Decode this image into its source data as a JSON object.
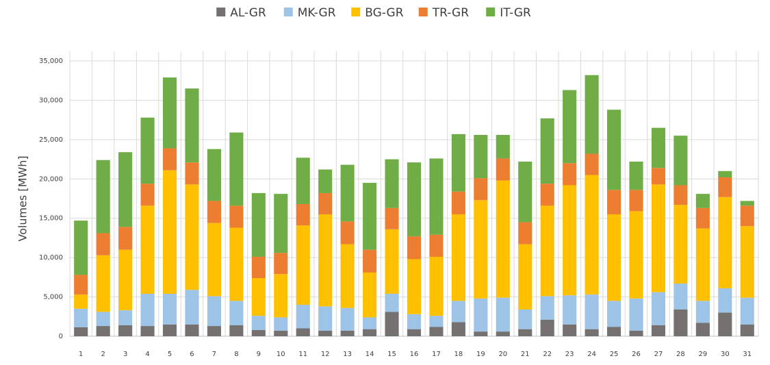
{
  "chart_data": {
    "type": "stacked-bar",
    "y_label": "Volumes [MWh]",
    "categories": [
      "1",
      "2",
      "3",
      "4",
      "5",
      "6",
      "7",
      "8",
      "9",
      "10",
      "11",
      "12",
      "13",
      "14",
      "15",
      "16",
      "17",
      "18",
      "19",
      "20",
      "21",
      "22",
      "23",
      "24",
      "25",
      "26",
      "27",
      "28",
      "29",
      "30",
      "31"
    ],
    "series": [
      {
        "name": "AL-GR",
        "color": "#767171",
        "values": [
          1150,
          1300,
          1400,
          1300,
          1500,
          1500,
          1300,
          1400,
          800,
          700,
          1000,
          700,
          700,
          900,
          3100,
          900,
          1200,
          1800,
          600,
          600,
          900,
          2100,
          1500,
          900,
          1200,
          700,
          1400,
          3400,
          1700,
          3000,
          1500
        ]
      },
      {
        "name": "MK-GR",
        "color": "#9dc3e6",
        "values": [
          2350,
          1800,
          1900,
          4100,
          3900,
          4400,
          3800,
          3100,
          1800,
          1700,
          3000,
          3100,
          2900,
          1500,
          2300,
          1900,
          1400,
          2700,
          4200,
          4300,
          2500,
          3000,
          3700,
          4400,
          3300,
          4100,
          4200,
          3300,
          2800,
          3100,
          3400
        ]
      },
      {
        "name": "BG-GR",
        "color": "#ffc000",
        "values": [
          1800,
          7200,
          7700,
          11200,
          15700,
          13400,
          9300,
          9300,
          4800,
          5500,
          10100,
          11700,
          8100,
          5700,
          8200,
          7000,
          7500,
          11000,
          12500,
          14900,
          8300,
          11500,
          14000,
          15200,
          11000,
          11100,
          13700,
          10000,
          9200,
          11600,
          9100
        ]
      },
      {
        "name": "TR-GR",
        "color": "#ed7d31",
        "values": [
          2500,
          2800,
          2900,
          2800,
          2800,
          2800,
          2800,
          2800,
          2700,
          2700,
          2700,
          2700,
          2900,
          2900,
          2700,
          2900,
          2800,
          2900,
          2800,
          2800,
          2800,
          2800,
          2800,
          2700,
          3100,
          2700,
          2100,
          2500,
          2600,
          2500,
          2600
        ]
      },
      {
        "name": "IT-GR",
        "color": "#70ad47",
        "values": [
          6900,
          9300,
          9500,
          8400,
          9000,
          9400,
          6600,
          9300,
          8100,
          7500,
          5900,
          3000,
          7200,
          8500,
          6200,
          9400,
          9700,
          7300,
          5500,
          3000,
          7700,
          8300,
          9300,
          10000,
          10200,
          3600,
          5100,
          6300,
          1800,
          800,
          600
        ]
      }
    ],
    "ylim": [
      0,
      35000
    ],
    "yticks": [
      0,
      {
        "value": 5000,
        "label": "5,000"
      },
      {
        "value": 10000,
        "label": "10,000"
      },
      {
        "value": 15000,
        "label": "15,000"
      },
      {
        "value": 20000,
        "label": "20,000"
      },
      {
        "value": 25000,
        "label": "25,000"
      },
      {
        "value": 30000,
        "label": "30,000"
      },
      {
        "value": 35000,
        "label": "35,000"
      }
    ],
    "grid": true,
    "legend": "top"
  }
}
